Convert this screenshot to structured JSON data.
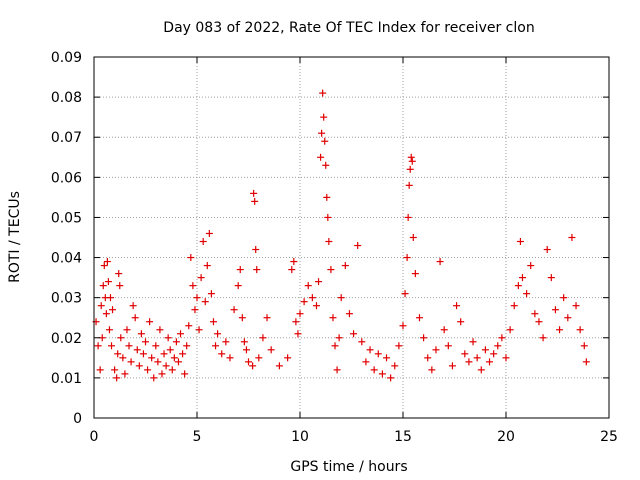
{
  "chart_data": {
    "type": "scatter",
    "title": "Day 083 of 2022, Rate Of TEC Index for receiver clon",
    "xlabel": "GPS time / hours",
    "ylabel": "ROTI / TECUs",
    "xlim": [
      0,
      25
    ],
    "ylim": [
      0,
      0.09
    ],
    "xticks": [
      "0",
      "5",
      "10",
      "15",
      "20",
      "25"
    ],
    "yticks": [
      "0",
      "0.01",
      "0.02",
      "0.03",
      "0.04",
      "0.05",
      "0.06",
      "0.07",
      "0.08",
      "0.09"
    ],
    "grid": true,
    "marker": "+",
    "color": "#e00000",
    "series": [
      {
        "points": [
          [
            0.1,
            0.024
          ],
          [
            0.2,
            0.018
          ],
          [
            0.3,
            0.012
          ],
          [
            0.35,
            0.028
          ],
          [
            0.4,
            0.02
          ],
          [
            0.45,
            0.033
          ],
          [
            0.5,
            0.038
          ],
          [
            0.55,
            0.03
          ],
          [
            0.6,
            0.026
          ],
          [
            0.65,
            0.039
          ],
          [
            0.7,
            0.034
          ],
          [
            0.75,
            0.022
          ],
          [
            0.8,
            0.03
          ],
          [
            0.85,
            0.018
          ],
          [
            0.9,
            0.027
          ],
          [
            1.0,
            0.012
          ],
          [
            1.1,
            0.01
          ],
          [
            1.15,
            0.016
          ],
          [
            1.2,
            0.036
          ],
          [
            1.25,
            0.033
          ],
          [
            1.3,
            0.02
          ],
          [
            1.4,
            0.015
          ],
          [
            1.5,
            0.011
          ],
          [
            1.6,
            0.022
          ],
          [
            1.7,
            0.018
          ],
          [
            1.8,
            0.014
          ],
          [
            1.9,
            0.028
          ],
          [
            2.0,
            0.025
          ],
          [
            2.1,
            0.017
          ],
          [
            2.2,
            0.013
          ],
          [
            2.3,
            0.021
          ],
          [
            2.4,
            0.016
          ],
          [
            2.5,
            0.019
          ],
          [
            2.6,
            0.012
          ],
          [
            2.7,
            0.024
          ],
          [
            2.8,
            0.015
          ],
          [
            2.9,
            0.01
          ],
          [
            3.0,
            0.018
          ],
          [
            3.1,
            0.014
          ],
          [
            3.2,
            0.022
          ],
          [
            3.3,
            0.011
          ],
          [
            3.4,
            0.016
          ],
          [
            3.5,
            0.013
          ],
          [
            3.6,
            0.02
          ],
          [
            3.7,
            0.017
          ],
          [
            3.8,
            0.012
          ],
          [
            3.9,
            0.015
          ],
          [
            4.0,
            0.019
          ],
          [
            4.1,
            0.014
          ],
          [
            4.2,
            0.021
          ],
          [
            4.3,
            0.016
          ],
          [
            4.4,
            0.011
          ],
          [
            4.5,
            0.018
          ],
          [
            4.6,
            0.023
          ],
          [
            4.7,
            0.04
          ],
          [
            4.8,
            0.033
          ],
          [
            4.9,
            0.027
          ],
          [
            5.0,
            0.03
          ],
          [
            5.1,
            0.022
          ],
          [
            5.2,
            0.035
          ],
          [
            5.3,
            0.044
          ],
          [
            5.4,
            0.029
          ],
          [
            5.5,
            0.038
          ],
          [
            5.6,
            0.046
          ],
          [
            5.7,
            0.031
          ],
          [
            5.8,
            0.024
          ],
          [
            5.9,
            0.018
          ],
          [
            6.0,
            0.021
          ],
          [
            6.2,
            0.016
          ],
          [
            6.4,
            0.019
          ],
          [
            6.6,
            0.015
          ],
          [
            6.8,
            0.027
          ],
          [
            7.0,
            0.033
          ],
          [
            7.1,
            0.037
          ],
          [
            7.2,
            0.025
          ],
          [
            7.3,
            0.019
          ],
          [
            7.4,
            0.017
          ],
          [
            7.5,
            0.014
          ],
          [
            7.7,
            0.013
          ],
          [
            7.75,
            0.056
          ],
          [
            7.8,
            0.054
          ],
          [
            7.85,
            0.042
          ],
          [
            7.9,
            0.037
          ],
          [
            8.0,
            0.015
          ],
          [
            8.2,
            0.02
          ],
          [
            8.4,
            0.025
          ],
          [
            8.6,
            0.017
          ],
          [
            9.0,
            0.013
          ],
          [
            9.4,
            0.015
          ],
          [
            9.6,
            0.037
          ],
          [
            9.7,
            0.039
          ],
          [
            9.8,
            0.024
          ],
          [
            9.9,
            0.021
          ],
          [
            10.0,
            0.026
          ],
          [
            10.2,
            0.029
          ],
          [
            10.4,
            0.033
          ],
          [
            10.6,
            0.03
          ],
          [
            10.8,
            0.028
          ],
          [
            10.9,
            0.034
          ],
          [
            11.0,
            0.065
          ],
          [
            11.05,
            0.071
          ],
          [
            11.1,
            0.081
          ],
          [
            11.15,
            0.075
          ],
          [
            11.2,
            0.069
          ],
          [
            11.25,
            0.063
          ],
          [
            11.3,
            0.055
          ],
          [
            11.35,
            0.05
          ],
          [
            11.4,
            0.044
          ],
          [
            11.5,
            0.037
          ],
          [
            11.6,
            0.025
          ],
          [
            11.7,
            0.018
          ],
          [
            11.8,
            0.012
          ],
          [
            11.9,
            0.02
          ],
          [
            12.0,
            0.03
          ],
          [
            12.2,
            0.038
          ],
          [
            12.4,
            0.026
          ],
          [
            12.6,
            0.021
          ],
          [
            12.8,
            0.043
          ],
          [
            13.0,
            0.019
          ],
          [
            13.2,
            0.014
          ],
          [
            13.4,
            0.017
          ],
          [
            13.6,
            0.012
          ],
          [
            13.8,
            0.016
          ],
          [
            14.0,
            0.011
          ],
          [
            14.2,
            0.015
          ],
          [
            14.4,
            0.01
          ],
          [
            14.6,
            0.013
          ],
          [
            14.8,
            0.018
          ],
          [
            15.0,
            0.023
          ],
          [
            15.1,
            0.031
          ],
          [
            15.2,
            0.04
          ],
          [
            15.25,
            0.05
          ],
          [
            15.3,
            0.058
          ],
          [
            15.35,
            0.062
          ],
          [
            15.4,
            0.065
          ],
          [
            15.45,
            0.064
          ],
          [
            15.5,
            0.045
          ],
          [
            15.6,
            0.036
          ],
          [
            15.8,
            0.025
          ],
          [
            16.0,
            0.02
          ],
          [
            16.2,
            0.015
          ],
          [
            16.4,
            0.012
          ],
          [
            16.6,
            0.017
          ],
          [
            16.8,
            0.039
          ],
          [
            17.0,
            0.022
          ],
          [
            17.2,
            0.018
          ],
          [
            17.4,
            0.013
          ],
          [
            17.6,
            0.028
          ],
          [
            17.8,
            0.024
          ],
          [
            18.0,
            0.016
          ],
          [
            18.2,
            0.014
          ],
          [
            18.4,
            0.019
          ],
          [
            18.6,
            0.015
          ],
          [
            18.8,
            0.012
          ],
          [
            19.0,
            0.017
          ],
          [
            19.2,
            0.014
          ],
          [
            19.4,
            0.016
          ],
          [
            19.6,
            0.018
          ],
          [
            19.8,
            0.02
          ],
          [
            20.0,
            0.015
          ],
          [
            20.2,
            0.022
          ],
          [
            20.4,
            0.028
          ],
          [
            20.6,
            0.033
          ],
          [
            20.7,
            0.044
          ],
          [
            20.8,
            0.035
          ],
          [
            21.0,
            0.031
          ],
          [
            21.2,
            0.038
          ],
          [
            21.4,
            0.026
          ],
          [
            21.6,
            0.024
          ],
          [
            21.8,
            0.02
          ],
          [
            22.0,
            0.042
          ],
          [
            22.2,
            0.035
          ],
          [
            22.4,
            0.027
          ],
          [
            22.6,
            0.022
          ],
          [
            22.8,
            0.03
          ],
          [
            23.0,
            0.025
          ],
          [
            23.2,
            0.045
          ],
          [
            23.4,
            0.028
          ],
          [
            23.6,
            0.022
          ],
          [
            23.8,
            0.018
          ],
          [
            23.9,
            0.014
          ]
        ]
      }
    ]
  }
}
